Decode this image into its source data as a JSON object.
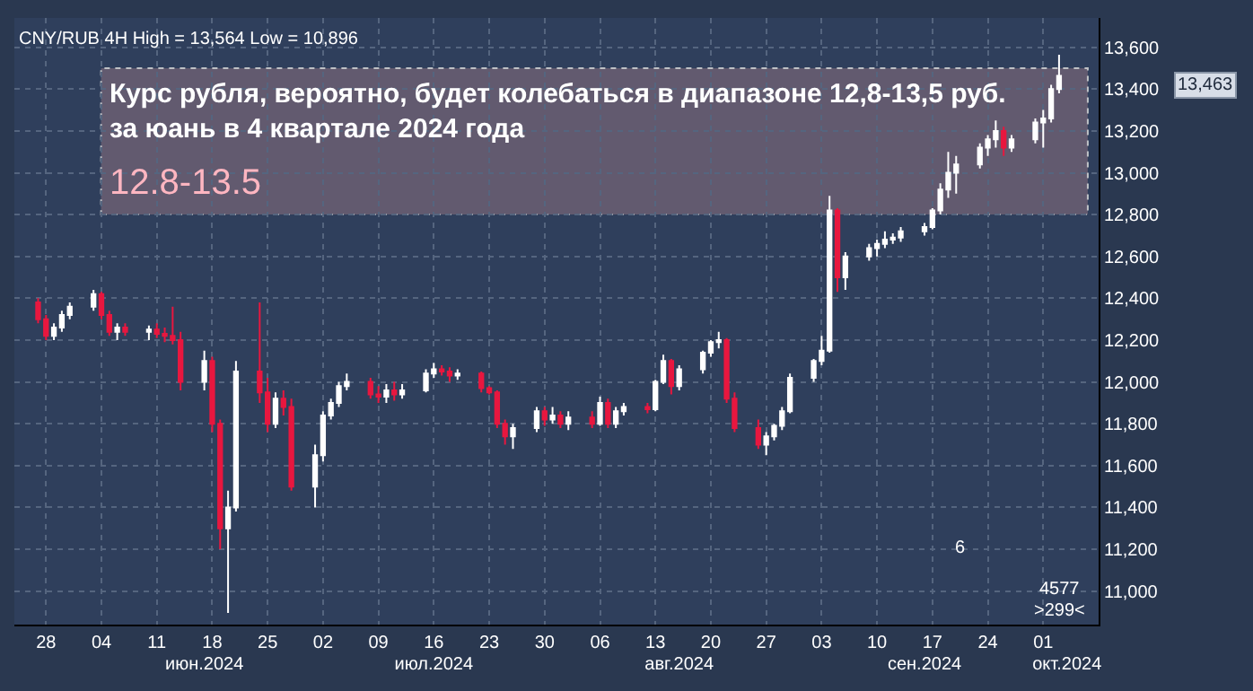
{
  "chart_data": {
    "type": "candlestick",
    "title": "CNY/RUB 4H High = 13,564 Low = 10,896",
    "x": [
      "2024-05-27",
      "2024-05-28",
      "2024-05-29",
      "2024-05-30",
      "2024-05-31",
      "2024-06-03",
      "2024-06-04",
      "2024-06-05",
      "2024-06-06",
      "2024-06-07",
      "2024-06-10",
      "2024-06-11",
      "2024-06-12",
      "2024-06-13",
      "2024-06-14",
      "2024-06-17",
      "2024-06-18",
      "2024-06-19",
      "2024-06-20",
      "2024-06-21",
      "2024-06-24",
      "2024-06-25",
      "2024-06-26",
      "2024-06-27",
      "2024-06-28",
      "2024-07-01",
      "2024-07-02",
      "2024-07-03",
      "2024-07-04",
      "2024-07-05",
      "2024-07-08",
      "2024-07-09",
      "2024-07-10",
      "2024-07-11",
      "2024-07-12",
      "2024-07-15",
      "2024-07-16",
      "2024-07-17",
      "2024-07-18",
      "2024-07-19",
      "2024-07-22",
      "2024-07-23",
      "2024-07-24",
      "2024-07-25",
      "2024-07-26",
      "2024-07-29",
      "2024-07-30",
      "2024-07-31",
      "2024-08-01",
      "2024-08-02",
      "2024-08-05",
      "2024-08-06",
      "2024-08-07",
      "2024-08-08",
      "2024-08-09",
      "2024-08-12",
      "2024-08-13",
      "2024-08-14",
      "2024-08-15",
      "2024-08-16",
      "2024-08-19",
      "2024-08-20",
      "2024-08-21",
      "2024-08-22",
      "2024-08-23",
      "2024-08-26",
      "2024-08-27",
      "2024-08-28",
      "2024-08-29",
      "2024-08-30",
      "2024-09-02",
      "2024-09-03",
      "2024-09-04",
      "2024-09-05",
      "2024-09-06",
      "2024-09-09",
      "2024-09-10",
      "2024-09-11",
      "2024-09-12",
      "2024-09-13",
      "2024-09-16",
      "2024-09-17",
      "2024-09-18",
      "2024-09-19",
      "2024-09-20",
      "2024-09-23",
      "2024-09-24",
      "2024-09-25",
      "2024-09-26",
      "2024-09-27",
      "2024-09-30",
      "2024-10-01",
      "2024-10-02",
      "2024-10-03"
    ],
    "ohlc": [
      [
        12380,
        12400,
        12280,
        12300
      ],
      [
        12300,
        12320,
        12200,
        12220
      ],
      [
        12220,
        12280,
        12200,
        12260
      ],
      [
        12260,
        12340,
        12240,
        12320
      ],
      [
        12320,
        12380,
        12300,
        12360
      ],
      [
        12360,
        12440,
        12340,
        12420
      ],
      [
        12420,
        12430,
        12300,
        12320
      ],
      [
        12320,
        12340,
        12220,
        12240
      ],
      [
        12240,
        12280,
        12200,
        12260
      ],
      [
        12260,
        12280,
        12220,
        12240
      ],
      [
        12240,
        12270,
        12200,
        12250
      ],
      [
        12250,
        12280,
        12210,
        12230
      ],
      [
        12230,
        12260,
        12190,
        12220
      ],
      [
        12220,
        12360,
        12180,
        12200
      ],
      [
        12200,
        12240,
        11960,
        12000
      ],
      [
        12000,
        12150,
        11960,
        12100
      ],
      [
        12100,
        12120,
        11760,
        11800
      ],
      [
        11800,
        11820,
        11200,
        11300
      ],
      [
        11300,
        11480,
        10896,
        11400
      ],
      [
        11400,
        12100,
        11380,
        12050
      ],
      [
        12050,
        12380,
        11900,
        11950
      ],
      [
        11950,
        12020,
        11760,
        11800
      ],
      [
        11800,
        11950,
        11780,
        11920
      ],
      [
        11920,
        11960,
        11840,
        11880
      ],
      [
        11880,
        11920,
        11480,
        11500
      ],
      [
        11500,
        11700,
        11400,
        11650
      ],
      [
        11650,
        11860,
        11620,
        11840
      ],
      [
        11840,
        11920,
        11820,
        11900
      ],
      [
        11900,
        12000,
        11880,
        11980
      ],
      [
        11980,
        12040,
        11960,
        12000
      ],
      [
        12000,
        12020,
        11920,
        11940
      ],
      [
        11940,
        11980,
        11900,
        11930
      ],
      [
        11930,
        11990,
        11900,
        11960
      ],
      [
        11960,
        12000,
        11910,
        11940
      ],
      [
        11940,
        11990,
        11920,
        11960
      ],
      [
        11960,
        12060,
        11950,
        12040
      ],
      [
        12040,
        12090,
        12020,
        12060
      ],
      [
        12060,
        12080,
        12030,
        12050
      ],
      [
        12050,
        12070,
        12000,
        12030
      ],
      [
        12030,
        12060,
        12010,
        12040
      ],
      [
        12040,
        12050,
        11950,
        11970
      ],
      [
        11970,
        11980,
        11940,
        11950
      ],
      [
        11950,
        11960,
        11780,
        11800
      ],
      [
        11800,
        11820,
        11700,
        11740
      ],
      [
        11740,
        11800,
        11680,
        11780
      ],
      [
        11780,
        11880,
        11760,
        11860
      ],
      [
        11860,
        11880,
        11790,
        11820
      ],
      [
        11820,
        11880,
        11800,
        11840
      ],
      [
        11840,
        11860,
        11780,
        11800
      ],
      [
        11800,
        11860,
        11770,
        11830
      ],
      [
        11830,
        11860,
        11780,
        11800
      ],
      [
        11800,
        11930,
        11790,
        11900
      ],
      [
        11900,
        11920,
        11780,
        11800
      ],
      [
        11800,
        11880,
        11780,
        11860
      ],
      [
        11860,
        11900,
        11840,
        11880
      ],
      [
        11880,
        11900,
        11850,
        11870
      ],
      [
        11870,
        12010,
        11860,
        12000
      ],
      [
        12000,
        12130,
        11990,
        12100
      ],
      [
        12100,
        12110,
        11940,
        11980
      ],
      [
        11980,
        12080,
        11960,
        12060
      ],
      [
        12060,
        12150,
        12040,
        12140
      ],
      [
        12140,
        12200,
        12120,
        12190
      ],
      [
        12190,
        12240,
        12160,
        12200
      ],
      [
        12200,
        12210,
        11900,
        11920
      ],
      [
        11920,
        11950,
        11760,
        11780
      ],
      [
        11780,
        11820,
        11680,
        11700
      ],
      [
        11700,
        11760,
        11650,
        11740
      ],
      [
        11740,
        11800,
        11720,
        11790
      ],
      [
        11790,
        11880,
        11770,
        11860
      ],
      [
        11860,
        12040,
        11850,
        12020
      ],
      [
        12020,
        12110,
        12000,
        12100
      ],
      [
        12100,
        12220,
        12080,
        12150
      ],
      [
        12150,
        12890,
        12140,
        12820
      ],
      [
        12820,
        12830,
        12430,
        12500
      ],
      [
        12500,
        12620,
        12440,
        12600
      ],
      [
        12600,
        12660,
        12580,
        12640
      ],
      [
        12640,
        12680,
        12600,
        12660
      ],
      [
        12660,
        12720,
        12640,
        12680
      ],
      [
        12680,
        12710,
        12660,
        12690
      ],
      [
        12690,
        12740,
        12670,
        12720
      ],
      [
        12720,
        12760,
        12700,
        12740
      ],
      [
        12740,
        12830,
        12730,
        12820
      ],
      [
        12820,
        12950,
        12800,
        12920
      ],
      [
        12920,
        13100,
        12880,
        13000
      ],
      [
        13000,
        13080,
        12900,
        13040
      ],
      [
        13040,
        13140,
        13020,
        13120
      ],
      [
        13120,
        13180,
        13080,
        13160
      ],
      [
        13160,
        13250,
        13120,
        13200
      ],
      [
        13200,
        13220,
        13080,
        13120
      ],
      [
        13120,
        13180,
        13100,
        13160
      ],
      [
        13160,
        13260,
        13140,
        13240
      ],
      [
        13240,
        13300,
        13120,
        13260
      ],
      [
        13260,
        13420,
        13240,
        13400
      ],
      [
        13400,
        13564,
        13380,
        13463
      ]
    ],
    "colors": [
      "#e8173f",
      "#e8173f",
      "#ffffff",
      "#ffffff",
      "#ffffff",
      "#ffffff",
      "#e8173f",
      "#e8173f",
      "#ffffff",
      "#e8173f",
      "#ffffff",
      "#e8173f",
      "#e8173f",
      "#e8173f",
      "#e8173f",
      "#ffffff",
      "#e8173f",
      "#e8173f",
      "#ffffff",
      "#ffffff",
      "#e8173f",
      "#e8173f",
      "#ffffff",
      "#e8173f",
      "#e8173f",
      "#ffffff",
      "#ffffff",
      "#ffffff",
      "#ffffff",
      "#ffffff",
      "#e8173f",
      "#e8173f",
      "#ffffff",
      "#e8173f",
      "#ffffff",
      "#ffffff",
      "#ffffff",
      "#e8173f",
      "#e8173f",
      "#ffffff",
      "#e8173f",
      "#e8173f",
      "#e8173f",
      "#e8173f",
      "#ffffff",
      "#ffffff",
      "#e8173f",
      "#ffffff",
      "#e8173f",
      "#ffffff",
      "#e8173f",
      "#ffffff",
      "#e8173f",
      "#ffffff",
      "#ffffff",
      "#e8173f",
      "#ffffff",
      "#ffffff",
      "#e8173f",
      "#ffffff",
      "#ffffff",
      "#ffffff",
      "#ffffff",
      "#e8173f",
      "#e8173f",
      "#e8173f",
      "#ffffff",
      "#ffffff",
      "#ffffff",
      "#ffffff",
      "#ffffff",
      "#ffffff",
      "#ffffff",
      "#e8173f",
      "#ffffff",
      "#ffffff",
      "#ffffff",
      "#ffffff",
      "#ffffff",
      "#ffffff",
      "#ffffff",
      "#ffffff",
      "#ffffff",
      "#ffffff",
      "#ffffff",
      "#ffffff",
      "#ffffff",
      "#ffffff",
      "#e8173f",
      "#ffffff",
      "#ffffff",
      "#ffffff",
      "#ffffff",
      "#ffffff"
    ],
    "xlim": [
      "2024-05-24",
      "2024-10-08"
    ],
    "xticks": [
      {
        "value": "2024-05-28",
        "label": "28"
      },
      {
        "value": "2024-06-04",
        "label": "04"
      },
      {
        "value": "2024-06-11",
        "label": "11"
      },
      {
        "value": "2024-06-18",
        "label": "18"
      },
      {
        "value": "2024-06-25",
        "label": "25"
      },
      {
        "value": "2024-07-02",
        "label": "02"
      },
      {
        "value": "2024-07-09",
        "label": "09"
      },
      {
        "value": "2024-07-16",
        "label": "16"
      },
      {
        "value": "2024-07-23",
        "label": "23"
      },
      {
        "value": "2024-07-30",
        "label": "30"
      },
      {
        "value": "2024-08-06",
        "label": "06"
      },
      {
        "value": "2024-08-13",
        "label": "13"
      },
      {
        "value": "2024-08-20",
        "label": "20"
      },
      {
        "value": "2024-08-27",
        "label": "27"
      },
      {
        "value": "2024-09-03",
        "label": "03"
      },
      {
        "value": "2024-09-10",
        "label": "10"
      },
      {
        "value": "2024-09-17",
        "label": "17"
      },
      {
        "value": "2024-09-24",
        "label": "24"
      },
      {
        "value": "2024-10-01",
        "label": "01"
      }
    ],
    "x2lim": [
      "2024-05-24",
      "2024-10-08"
    ],
    "x2ticks": [
      {
        "value": "2024-06-17",
        "label": "июн.2024"
      },
      {
        "value": "2024-07-16",
        "label": "июл.2024"
      },
      {
        "value": "2024-08-16",
        "label": "авг.2024"
      },
      {
        "value": "2024-09-16",
        "label": "сен.2024"
      },
      {
        "value": "2024-10-04",
        "label": "окт.2024"
      }
    ],
    "ylim": [
      10840,
      13740
    ],
    "yticks": [
      {
        "value": 11000,
        "label": "11,000"
      },
      {
        "value": 11200,
        "label": "11,200"
      },
      {
        "value": 11400,
        "label": "11,400"
      },
      {
        "value": 11600,
        "label": "11,600"
      },
      {
        "value": 11800,
        "label": "11,800"
      },
      {
        "value": 12000,
        "label": "12,000"
      },
      {
        "value": 12200,
        "label": "12,200"
      },
      {
        "value": 12400,
        "label": "12,400"
      },
      {
        "value": 12600,
        "label": "12,600"
      },
      {
        "value": 12800,
        "label": "12,800"
      },
      {
        "value": 13000,
        "label": "13,000"
      },
      {
        "value": 13200,
        "label": "13,200"
      },
      {
        "value": 13400,
        "label": "13,400"
      },
      {
        "value": 13600,
        "label": "13,600"
      }
    ],
    "grid": true,
    "bands": [
      {
        "axis": "y",
        "from": 12800,
        "to": 13500,
        "label": "12.8-13.5",
        "color": "#6b5f73"
      }
    ],
    "annotations": [
      "Курс рубля, вероятно, будет колебаться в диапазоне 12,8-13,5 руб.\nза юань в 4 квартале 2024 года",
      "13,463",
      "6",
      "4577",
      ">299<"
    ]
  }
}
